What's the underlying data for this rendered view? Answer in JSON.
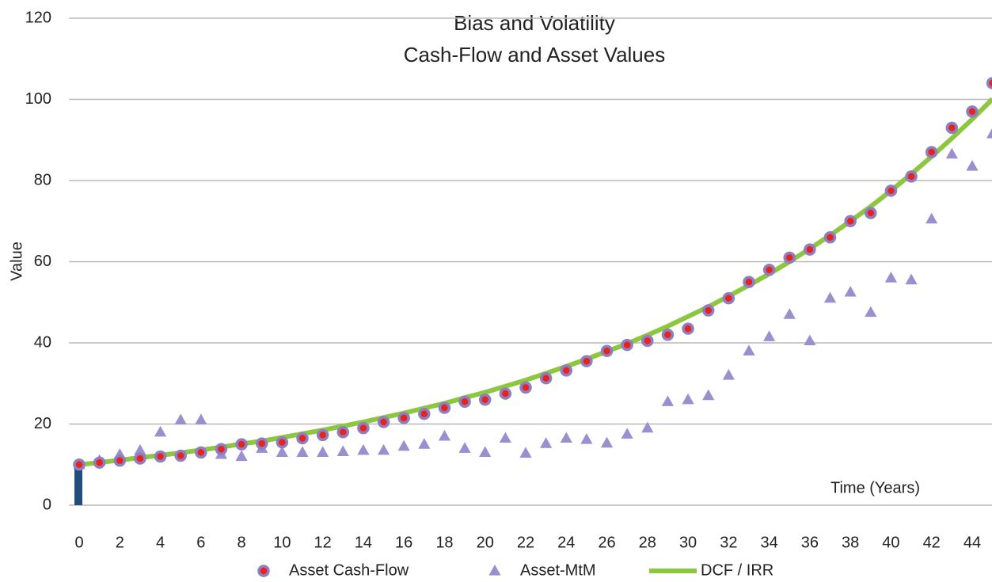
{
  "chart_data": {
    "type": "line",
    "title": "Bias and Volatility",
    "subtitle": "Cash-Flow and Asset Values",
    "y_label": "Value",
    "annotation": "Time (Years)",
    "x": [
      0,
      1,
      2,
      3,
      4,
      5,
      6,
      7,
      8,
      9,
      10,
      11,
      12,
      13,
      14,
      15,
      16,
      17,
      18,
      19,
      20,
      21,
      22,
      23,
      24,
      25,
      26,
      27,
      28,
      29,
      30,
      31,
      32,
      33,
      34,
      35,
      36,
      37,
      38,
      39,
      40,
      41,
      42,
      43,
      44,
      45
    ],
    "series": [
      {
        "name": "Asset Cash-Flow",
        "marker": "circle",
        "color": "#e8231f",
        "edge_color": "#8d7fc0",
        "values": [
          10,
          10.5,
          11,
          11.5,
          12,
          12.2,
          13,
          13.8,
          15,
          15.2,
          15.5,
          16.5,
          17.3,
          18,
          19,
          20.5,
          21.5,
          22.5,
          24,
          25.5,
          26,
          27.5,
          29,
          31.3,
          33.2,
          35.5,
          38,
          39.5,
          40.5,
          42,
          43.5,
          48,
          51,
          55,
          58,
          61,
          63,
          66,
          70,
          72,
          77.5,
          81,
          87,
          93,
          97,
          104
        ]
      },
      {
        "name": "Asset-MtM",
        "marker": "triangle",
        "color": "#9b8fd0",
        "values": [
          10,
          11,
          12.5,
          13.5,
          18,
          21,
          21,
          12.5,
          12,
          14,
          13,
          13,
          13,
          13.2,
          13.5,
          13.5,
          14.5,
          15,
          17,
          14,
          13,
          16.5,
          12.8,
          15.2,
          16.5,
          16.2,
          15.3,
          17.5,
          19,
          25.5,
          26,
          27,
          32,
          38,
          41.5,
          47,
          40.5,
          51,
          52.5,
          47.5,
          56,
          55.5,
          70.5,
          86.5,
          83.5,
          91.5
        ]
      },
      {
        "name": "DCF / IRR",
        "marker": "line",
        "color": "#8dc63f",
        "values": [
          10,
          10.5,
          11.1,
          11.7,
          12.3,
          12.9,
          13.6,
          14.3,
          15.1,
          15.8,
          16.7,
          17.6,
          18.5,
          19.5,
          20.5,
          21.6,
          22.7,
          23.9,
          25.1,
          26.5,
          27.8,
          29.3,
          30.8,
          32.5,
          34.2,
          36,
          37.9,
          39.8,
          41.9,
          44.1,
          46.5,
          48.9,
          51.5,
          54.2,
          57,
          60,
          63.2,
          66.5,
          70,
          73.6,
          77.5,
          81.6,
          85.9,
          90.4,
          95.1,
          100.1
        ]
      }
    ],
    "base_bar": {
      "x": 0,
      "value": 10,
      "color": "#1f4e79"
    },
    "xlim": [
      -0.5,
      45
    ],
    "xticks": [
      0,
      2,
      4,
      6,
      8,
      10,
      12,
      14,
      16,
      18,
      20,
      22,
      24,
      26,
      28,
      30,
      32,
      34,
      36,
      38,
      40,
      42,
      44
    ],
    "ylim": [
      0,
      120
    ],
    "yticks": [
      0,
      20,
      40,
      60,
      80,
      100,
      120
    ],
    "grid": true,
    "legend": "bottom"
  }
}
